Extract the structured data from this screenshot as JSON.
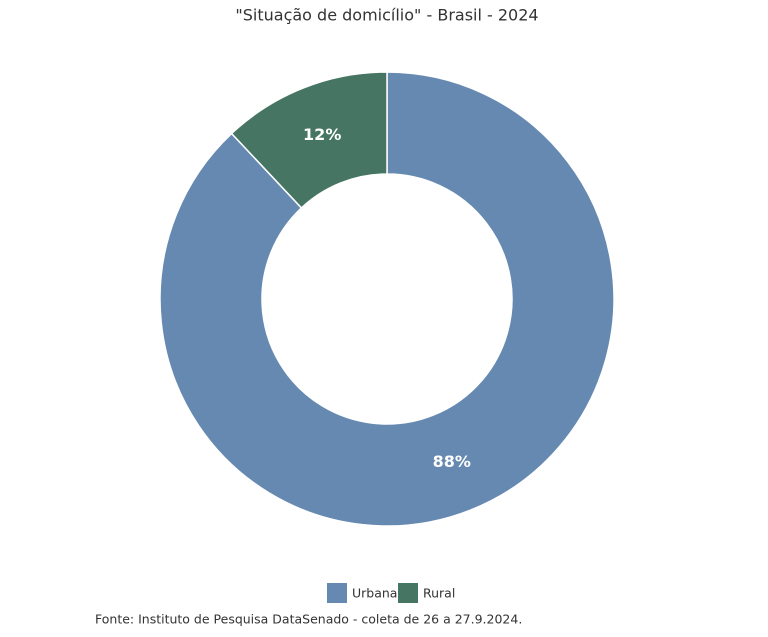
{
  "chart_data": {
    "type": "donut",
    "title": "\"Situação de domicílio\" - Brasil - 2024",
    "categories": [
      "Urbana",
      "Rural"
    ],
    "values": [
      88,
      12
    ],
    "value_labels": [
      "88%",
      "12%"
    ],
    "colors": [
      "#6689b1",
      "#467563"
    ],
    "source": "Fonte: Instituto de Pesquisa DataSenado - coleta de 26 a 27.9.2024."
  }
}
